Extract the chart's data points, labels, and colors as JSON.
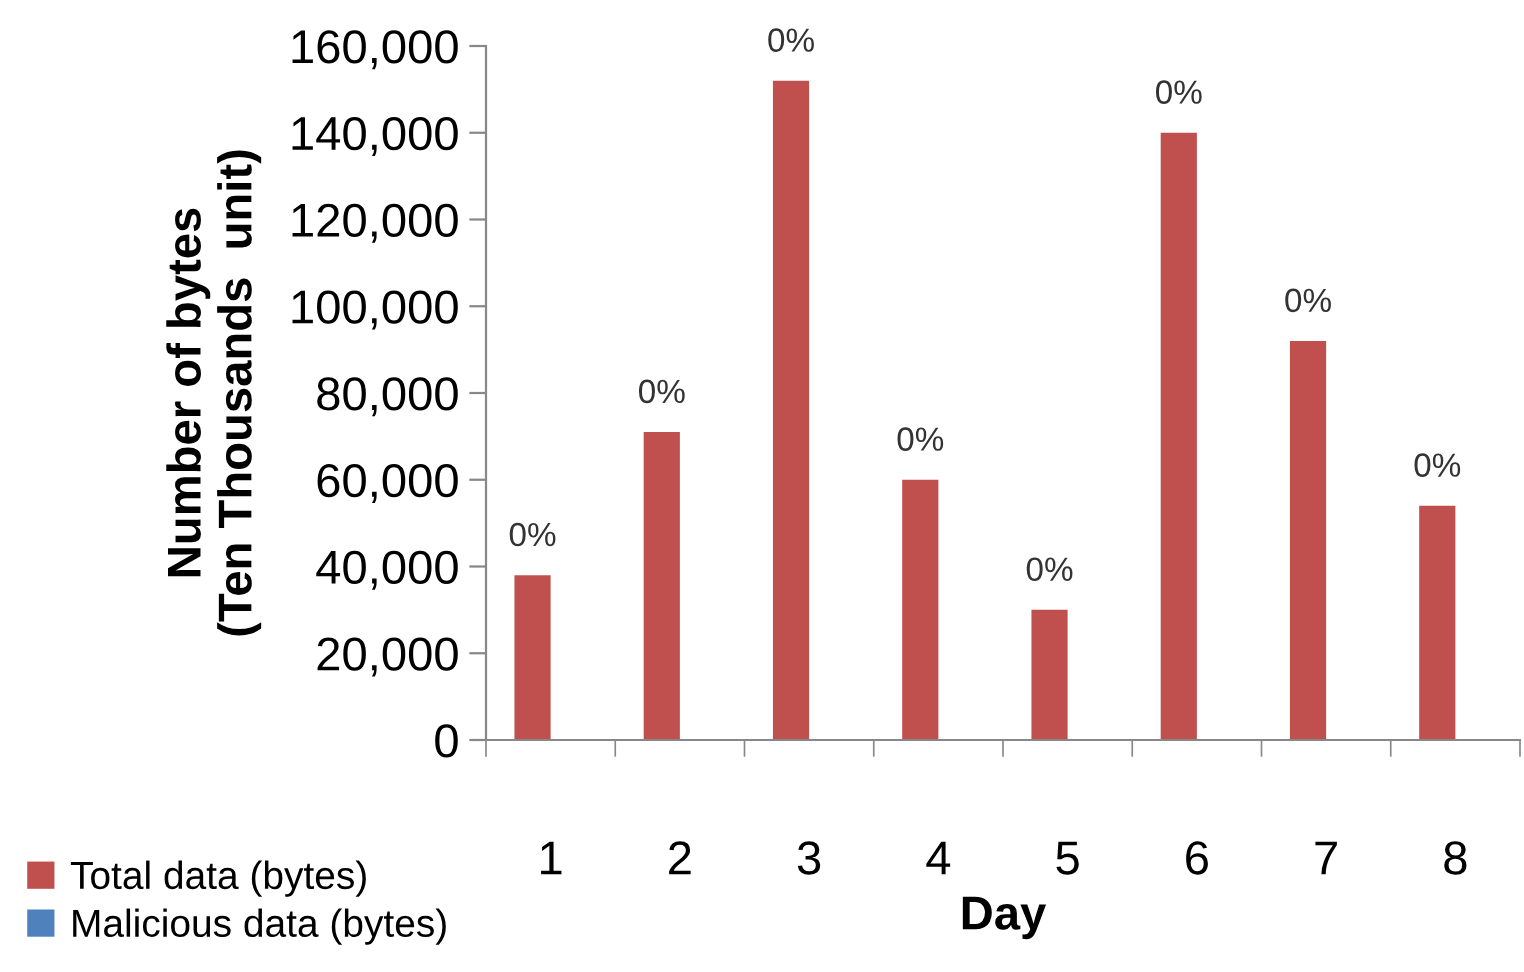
{
  "chart_data": {
    "type": "bar",
    "xlabel": "Day",
    "ylabel": "Number of bytes\n(Ten Thousands  unit)",
    "categories": [
      "1",
      "2",
      "3",
      "4",
      "5",
      "6",
      "7",
      "8"
    ],
    "series": [
      {
        "name": "Total data (bytes)",
        "color": "#c0504d",
        "values": [
          38000,
          71000,
          152000,
          60000,
          30000,
          140000,
          92000,
          54000
        ]
      },
      {
        "name": "Malicious data (bytes)",
        "color": "#4f81bd",
        "values": [
          0,
          0,
          0,
          0,
          0,
          0,
          0,
          0
        ]
      }
    ],
    "ylim": [
      0,
      160000
    ],
    "yticks": [
      {
        "value": 0,
        "label": "0"
      },
      {
        "value": 20000,
        "label": "20,000"
      },
      {
        "value": 40000,
        "label": "40,000"
      },
      {
        "value": 60000,
        "label": "60,000"
      },
      {
        "value": 80000,
        "label": "80,000"
      },
      {
        "value": 100000,
        "label": "100,000"
      },
      {
        "value": 120000,
        "label": "120,000"
      },
      {
        "value": 140000,
        "label": "140,000"
      },
      {
        "value": 160000,
        "label": "160,000"
      }
    ],
    "annotations": [
      {
        "text": "0%",
        "x": "1",
        "y": 38000
      },
      {
        "text": "0%",
        "x": "2",
        "y": 71000
      },
      {
        "text": "0%",
        "x": "3",
        "y": 152000
      },
      {
        "text": "0%",
        "x": "4",
        "y": 60000
      },
      {
        "text": "0%",
        "x": "5",
        "y": 30000
      },
      {
        "text": "0%",
        "x": "6",
        "y": 140000
      },
      {
        "text": "0%",
        "x": "7",
        "y": 92000
      },
      {
        "text": "0%",
        "x": "8",
        "y": 54000
      }
    ],
    "grid": false,
    "legend": "bottom left"
  }
}
